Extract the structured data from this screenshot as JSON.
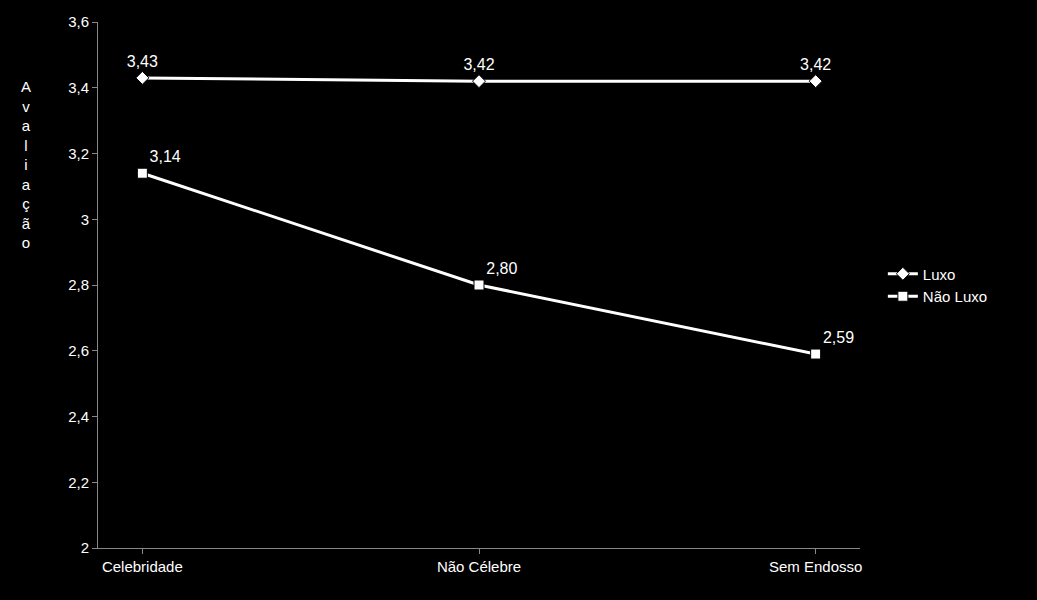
{
  "chart_data": {
    "type": "line",
    "y_label": "Avaliação",
    "categories": [
      "Celebridade",
      "Não Célebre",
      "Sem Endosso"
    ],
    "series": [
      {
        "name": "Luxo",
        "color": "#ffffff",
        "marker": "diamond",
        "values": [
          3.43,
          3.42,
          3.42
        ],
        "value_labels": [
          "3,43",
          "3,42",
          "3,42"
        ]
      },
      {
        "name": "Não Luxo",
        "color": "#ffffff",
        "marker": "square",
        "values": [
          3.14,
          2.8,
          2.59
        ],
        "value_labels": [
          "3,14",
          "2,80",
          "2,59"
        ]
      }
    ],
    "ylim": [
      2,
      3.6
    ],
    "yticks": [
      2,
      {
        "value": 2.2,
        "label": "2,2"
      },
      {
        "value": 2.4,
        "label": "2,4"
      },
      {
        "value": 2.6,
        "label": "2,6"
      },
      {
        "value": 2.8,
        "label": "2,8"
      },
      3,
      {
        "value": 3.2,
        "label": "3,2"
      },
      {
        "value": 3.4,
        "label": "3,4"
      },
      {
        "value": 3.6,
        "label": "3,6"
      }
    ],
    "grid": false,
    "legend": "right",
    "data_labels": true
  }
}
